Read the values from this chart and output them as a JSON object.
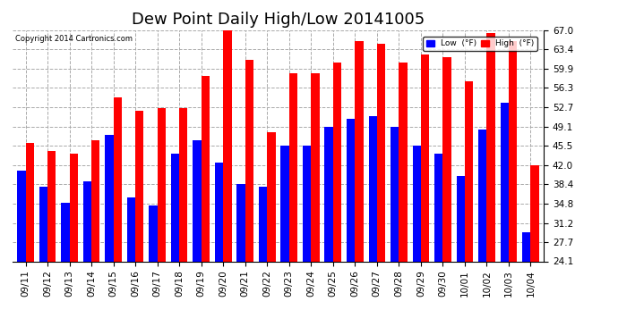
{
  "title": "Dew Point Daily High/Low 20141005",
  "copyright": "Copyright 2014 Cartronics.com",
  "legend_low": "Low  (°F)",
  "legend_high": "High  (°F)",
  "low_color": "#0000ff",
  "high_color": "#ff0000",
  "bg_color": "#ffffff",
  "grid_color": "#aaaaaa",
  "ylim": [
    24.1,
    67.0
  ],
  "yticks": [
    24.1,
    27.7,
    31.2,
    34.8,
    38.4,
    42.0,
    45.5,
    49.1,
    52.7,
    56.3,
    59.9,
    63.4,
    67.0
  ],
  "dates": [
    "09/11",
    "09/12",
    "09/13",
    "09/14",
    "09/15",
    "09/16",
    "09/17",
    "09/18",
    "09/19",
    "09/20",
    "09/21",
    "09/22",
    "09/23",
    "09/24",
    "09/25",
    "09/26",
    "09/27",
    "09/28",
    "09/29",
    "09/30",
    "10/01",
    "10/02",
    "10/03",
    "10/04"
  ],
  "lows": [
    41.0,
    37.9,
    35.0,
    39.0,
    47.5,
    36.0,
    34.5,
    44.0,
    46.5,
    42.5,
    38.5,
    38.0,
    45.5,
    45.5,
    49.0,
    50.5,
    51.0,
    49.0,
    45.5,
    44.0,
    40.0,
    48.5,
    53.5,
    29.5
  ],
  "highs": [
    46.0,
    44.5,
    44.0,
    46.5,
    54.5,
    52.0,
    52.5,
    52.5,
    58.5,
    67.0,
    61.5,
    48.0,
    59.0,
    59.0,
    61.0,
    65.0,
    64.5,
    61.0,
    62.5,
    62.0,
    57.5,
    66.5,
    65.0,
    42.0
  ],
  "bar_width": 0.38,
  "title_fontsize": 13,
  "tick_fontsize": 7.5,
  "figsize": [
    6.9,
    3.75
  ],
  "dpi": 100,
  "ymin": 24.1
}
